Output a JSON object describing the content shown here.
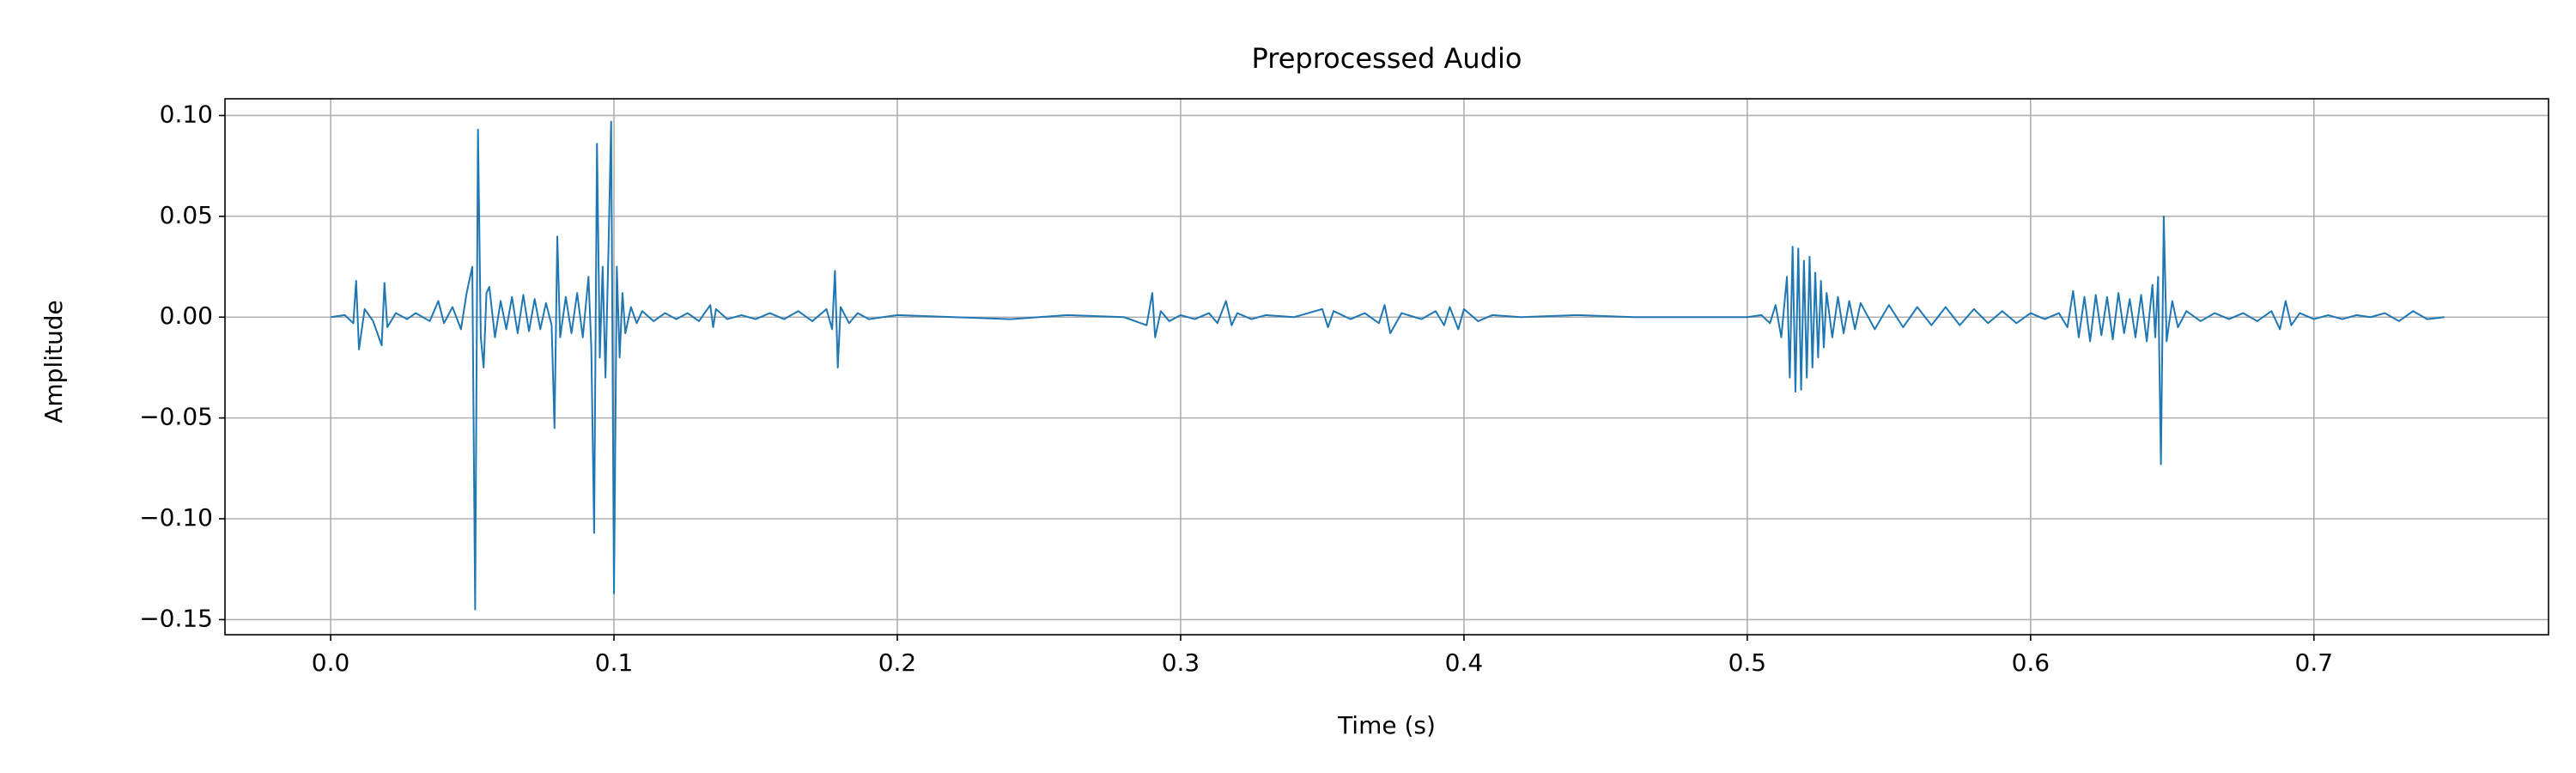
{
  "chart_data": {
    "type": "line",
    "title": "Preprocessed Audio",
    "xlabel": "Time (s)",
    "ylabel": "Amplitude",
    "color": "#1f77b4",
    "grid": true,
    "xlim": [
      -0.0373,
      0.7828
    ],
    "ylim": [
      -0.1575,
      0.1083
    ],
    "xticks": [
      {
        "value": 0,
        "label": "0.0"
      },
      {
        "value": 0.1,
        "label": "0.1"
      },
      {
        "value": 0.2,
        "label": "0.2"
      },
      {
        "value": 0.3,
        "label": "0.3"
      },
      {
        "value": 0.4,
        "label": "0.4"
      },
      {
        "value": 0.5,
        "label": "0.5"
      },
      {
        "value": 0.6,
        "label": "0.6"
      },
      {
        "value": 0.7,
        "label": "0.7"
      }
    ],
    "yticks": [
      {
        "value": -0.15,
        "label": "−0.15"
      },
      {
        "value": -0.1,
        "label": "−0.10"
      },
      {
        "value": -0.05,
        "label": "−0.05"
      },
      {
        "value": 0,
        "label": "0.00"
      },
      {
        "value": 0.05,
        "label": "0.05"
      },
      {
        "value": 0.1,
        "label": "0.10"
      }
    ],
    "x": [
      0.0,
      0.005,
      0.008,
      0.009,
      0.01,
      0.012,
      0.015,
      0.018,
      0.019,
      0.02,
      0.023,
      0.027,
      0.03,
      0.035,
      0.038,
      0.04,
      0.043,
      0.046,
      0.048,
      0.05,
      0.051,
      0.052,
      0.053,
      0.054,
      0.055,
      0.056,
      0.058,
      0.06,
      0.062,
      0.064,
      0.066,
      0.068,
      0.07,
      0.072,
      0.074,
      0.076,
      0.078,
      0.079,
      0.08,
      0.081,
      0.083,
      0.085,
      0.087,
      0.089,
      0.091,
      0.092,
      0.093,
      0.094,
      0.095,
      0.096,
      0.097,
      0.098,
      0.099,
      0.1,
      0.101,
      0.102,
      0.103,
      0.104,
      0.106,
      0.108,
      0.11,
      0.114,
      0.118,
      0.122,
      0.126,
      0.13,
      0.134,
      0.135,
      0.136,
      0.14,
      0.145,
      0.15,
      0.155,
      0.16,
      0.165,
      0.17,
      0.175,
      0.177,
      0.178,
      0.179,
      0.18,
      0.183,
      0.186,
      0.19,
      0.2,
      0.22,
      0.24,
      0.26,
      0.28,
      0.288,
      0.29,
      0.291,
      0.293,
      0.296,
      0.3,
      0.305,
      0.31,
      0.313,
      0.316,
      0.318,
      0.32,
      0.325,
      0.33,
      0.34,
      0.35,
      0.352,
      0.354,
      0.36,
      0.365,
      0.37,
      0.372,
      0.374,
      0.378,
      0.385,
      0.39,
      0.393,
      0.395,
      0.398,
      0.4,
      0.405,
      0.41,
      0.42,
      0.44,
      0.46,
      0.48,
      0.5,
      0.505,
      0.508,
      0.51,
      0.512,
      0.514,
      0.515,
      0.516,
      0.517,
      0.518,
      0.519,
      0.52,
      0.521,
      0.522,
      0.523,
      0.524,
      0.525,
      0.526,
      0.527,
      0.528,
      0.53,
      0.532,
      0.534,
      0.536,
      0.538,
      0.54,
      0.545,
      0.55,
      0.555,
      0.56,
      0.565,
      0.57,
      0.575,
      0.58,
      0.585,
      0.59,
      0.595,
      0.6,
      0.605,
      0.61,
      0.613,
      0.615,
      0.617,
      0.619,
      0.621,
      0.623,
      0.625,
      0.627,
      0.629,
      0.631,
      0.633,
      0.635,
      0.637,
      0.639,
      0.641,
      0.643,
      0.644,
      0.645,
      0.646,
      0.647,
      0.648,
      0.65,
      0.652,
      0.655,
      0.66,
      0.665,
      0.67,
      0.675,
      0.68,
      0.685,
      0.688,
      0.69,
      0.692,
      0.695,
      0.7,
      0.705,
      0.71,
      0.715,
      0.72,
      0.725,
      0.73,
      0.735,
      0.74,
      0.746
    ],
    "values": [
      0.0,
      0.001,
      -0.003,
      0.018,
      -0.016,
      0.004,
      -0.002,
      -0.014,
      0.017,
      -0.005,
      0.002,
      -0.001,
      0.002,
      -0.002,
      0.008,
      -0.003,
      0.005,
      -0.006,
      0.012,
      0.025,
      -0.145,
      0.093,
      -0.01,
      -0.025,
      0.012,
      0.015,
      -0.01,
      0.008,
      -0.006,
      0.01,
      -0.008,
      0.011,
      -0.007,
      0.009,
      -0.006,
      0.007,
      -0.004,
      -0.055,
      0.04,
      -0.01,
      0.01,
      -0.008,
      0.012,
      -0.01,
      0.02,
      -0.015,
      -0.107,
      0.086,
      -0.02,
      0.025,
      -0.03,
      0.03,
      0.097,
      -0.137,
      0.025,
      -0.02,
      0.012,
      -0.008,
      0.005,
      -0.003,
      0.003,
      -0.002,
      0.002,
      -0.001,
      0.002,
      -0.002,
      0.006,
      -0.005,
      0.004,
      -0.001,
      0.001,
      -0.001,
      0.002,
      -0.001,
      0.003,
      -0.002,
      0.004,
      -0.006,
      0.023,
      -0.025,
      0.005,
      -0.003,
      0.002,
      -0.001,
      0.001,
      0.0,
      -0.001,
      0.001,
      0.0,
      -0.004,
      0.012,
      -0.01,
      0.003,
      -0.002,
      0.001,
      -0.001,
      0.002,
      -0.003,
      0.008,
      -0.004,
      0.002,
      -0.001,
      0.001,
      0.0,
      0.004,
      -0.005,
      0.003,
      -0.001,
      0.002,
      -0.003,
      0.006,
      -0.008,
      0.002,
      -0.001,
      0.003,
      -0.004,
      0.005,
      -0.006,
      0.004,
      -0.002,
      0.001,
      0.0,
      0.001,
      0.0,
      0.0,
      0.0,
      0.001,
      -0.003,
      0.006,
      -0.01,
      0.02,
      -0.03,
      0.035,
      -0.037,
      0.034,
      -0.036,
      0.028,
      -0.03,
      0.03,
      -0.025,
      0.022,
      -0.02,
      0.018,
      -0.015,
      0.012,
      -0.01,
      0.01,
      -0.008,
      0.008,
      -0.006,
      0.007,
      -0.006,
      0.006,
      -0.005,
      0.005,
      -0.004,
      0.005,
      -0.004,
      0.004,
      -0.003,
      0.003,
      -0.003,
      0.002,
      -0.001,
      0.002,
      -0.005,
      0.013,
      -0.01,
      0.01,
      -0.012,
      0.011,
      -0.009,
      0.01,
      -0.011,
      0.012,
      -0.008,
      0.009,
      -0.01,
      0.011,
      -0.012,
      0.016,
      -0.01,
      0.02,
      -0.073,
      0.05,
      -0.012,
      0.008,
      -0.005,
      0.003,
      -0.002,
      0.002,
      -0.001,
      0.002,
      -0.002,
      0.003,
      -0.006,
      0.008,
      -0.004,
      0.002,
      -0.001,
      0.001,
      -0.001,
      0.001,
      0.0,
      0.002,
      -0.002,
      0.003,
      -0.001,
      0.0
    ]
  }
}
